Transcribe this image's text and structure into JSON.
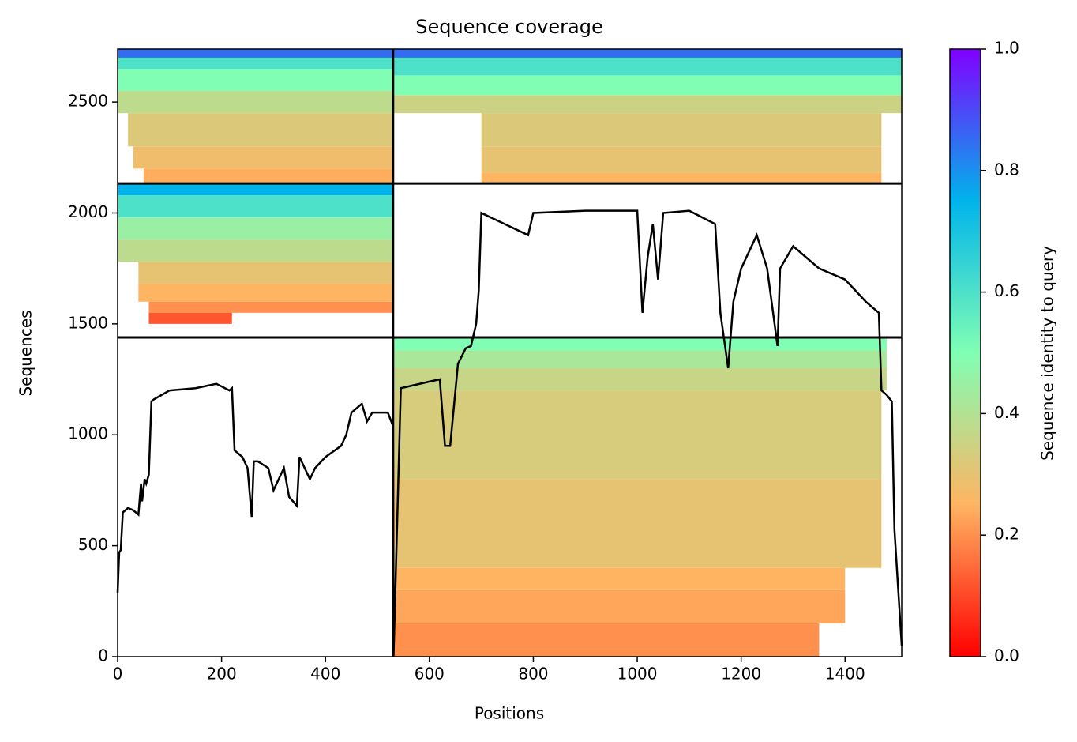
{
  "chart_data": {
    "type": "coverage",
    "title": "Sequence coverage",
    "x_label": "Positions",
    "y_label": "Sequences",
    "colorbar_label": "Sequence identity to query",
    "xlim": [
      0,
      1509
    ],
    "ylim": [
      0,
      2739
    ],
    "xticks": [
      0,
      200,
      400,
      600,
      800,
      1000,
      1200,
      1400
    ],
    "yticks": [
      0,
      500,
      1000,
      1500,
      2000,
      2500
    ],
    "colorbar_lim": [
      0,
      1
    ],
    "colorbar_ticks": [
      {
        "value": 0,
        "label": "0.0"
      },
      {
        "value": 0.2,
        "label": "0.2"
      },
      {
        "value": 0.4,
        "label": "0.4"
      },
      {
        "value": 0.6,
        "label": "0.6"
      },
      {
        "value": 0.8,
        "label": "0.8"
      },
      {
        "value": 1,
        "label": "1.0"
      }
    ],
    "colormap": [
      "#ff0000",
      "#ffb462",
      "#80ffb4",
      "#00b4eb",
      "#8000ff"
    ],
    "dividers_x": [
      530
    ],
    "dividers_y": [
      1439,
      2133
    ],
    "cells": [
      [
        0,
        530,
        2700,
        2739,
        0.85
      ],
      [
        0,
        530,
        2650,
        2700,
        0.6
      ],
      [
        0,
        530,
        2550,
        2650,
        0.5
      ],
      [
        0,
        530,
        2450,
        2550,
        0.38
      ],
      [
        20,
        530,
        2300,
        2450,
        0.32
      ],
      [
        30,
        530,
        2200,
        2300,
        0.28
      ],
      [
        50,
        530,
        2133,
        2200,
        0.24
      ],
      [
        530,
        1509,
        2700,
        2739,
        0.85
      ],
      [
        530,
        1509,
        2620,
        2700,
        0.6
      ],
      [
        530,
        1509,
        2530,
        2620,
        0.5
      ],
      [
        530,
        1509,
        2450,
        2530,
        0.35
      ],
      [
        700,
        1470,
        2300,
        2450,
        0.32
      ],
      [
        700,
        1470,
        2180,
        2300,
        0.3
      ],
      [
        700,
        1470,
        2133,
        2180,
        0.25
      ],
      [
        0,
        530,
        2080,
        2133,
        0.75
      ],
      [
        0,
        530,
        1980,
        2080,
        0.6
      ],
      [
        0,
        530,
        1880,
        1980,
        0.45
      ],
      [
        0,
        530,
        1780,
        1880,
        0.38
      ],
      [
        40,
        530,
        1680,
        1780,
        0.3
      ],
      [
        40,
        530,
        1600,
        1680,
        0.25
      ],
      [
        60,
        530,
        1550,
        1600,
        0.2
      ],
      [
        60,
        220,
        1500,
        1550,
        0.12
      ],
      [
        530,
        1480,
        1380,
        1439,
        0.5
      ],
      [
        530,
        1480,
        1300,
        1380,
        0.42
      ],
      [
        530,
        1480,
        1200,
        1300,
        0.36
      ],
      [
        530,
        1470,
        800,
        1200,
        0.33
      ],
      [
        530,
        1470,
        400,
        800,
        0.3
      ],
      [
        530,
        1400,
        300,
        400,
        0.25
      ],
      [
        530,
        1400,
        150,
        300,
        0.23
      ],
      [
        530,
        1350,
        0,
        150,
        0.2
      ]
    ],
    "coverage": {
      "color": "#000000",
      "x": [
        0,
        3,
        6,
        10,
        20,
        30,
        40,
        45,
        47,
        52,
        55,
        60,
        65,
        70,
        100,
        150,
        190,
        215,
        220,
        225,
        240,
        250,
        258,
        262,
        270,
        290,
        300,
        320,
        330,
        345,
        350,
        370,
        380,
        400,
        430,
        440,
        450,
        470,
        480,
        490,
        520,
        530,
        531,
        545,
        600,
        620,
        630,
        640,
        655,
        670,
        680,
        690,
        695,
        700,
        790,
        800,
        900,
        1000,
        1010,
        1020,
        1030,
        1040,
        1050,
        1100,
        1150,
        1160,
        1175,
        1185,
        1200,
        1230,
        1250,
        1270,
        1275,
        1300,
        1350,
        1400,
        1440,
        1465,
        1470,
        1480,
        1490,
        1495,
        1509
      ],
      "values": [
        288,
        470,
        480,
        650,
        670,
        660,
        640,
        780,
        700,
        800,
        780,
        820,
        1150,
        1160,
        1200,
        1210,
        1230,
        1200,
        1210,
        930,
        900,
        850,
        630,
        880,
        880,
        850,
        750,
        850,
        720,
        680,
        900,
        800,
        850,
        900,
        950,
        1000,
        1100,
        1140,
        1060,
        1100,
        1100,
        1040,
        0,
        1210,
        1240,
        1250,
        950,
        950,
        1320,
        1390,
        1400,
        1500,
        1650,
        2000,
        1900,
        2000,
        2010,
        2010,
        1550,
        1800,
        1950,
        1700,
        2000,
        2010,
        1950,
        1550,
        1300,
        1600,
        1750,
        1900,
        1750,
        1400,
        1750,
        1850,
        1750,
        1700,
        1600,
        1550,
        1200,
        1180,
        1150,
        573,
        50
      ]
    }
  }
}
